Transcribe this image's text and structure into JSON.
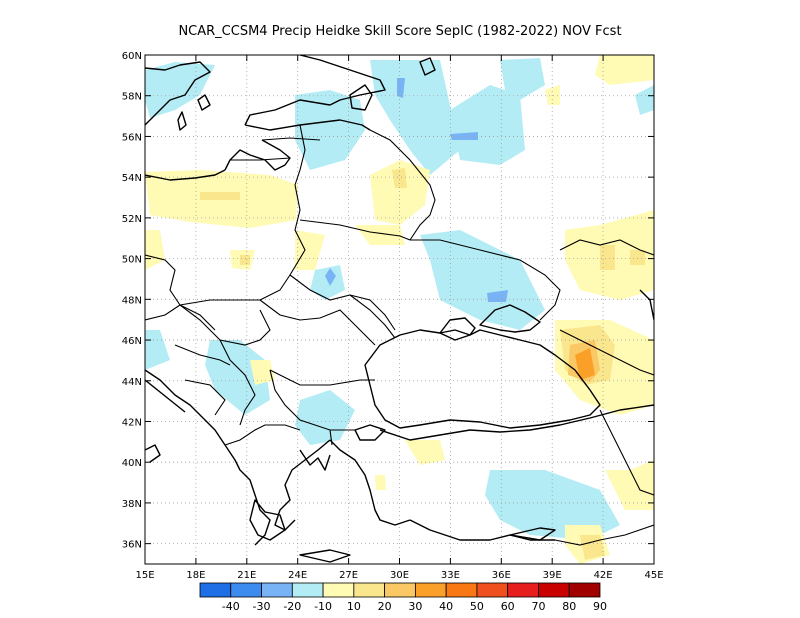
{
  "title": "NCAR_CCSM4 Precip Heidke Skill Score SepIC (1982-2022) NOV Fcst",
  "map": {
    "lon_range": [
      15,
      45
    ],
    "lat_range": [
      35,
      60
    ],
    "grid": true,
    "lon_ticks": [
      "15E",
      "18E",
      "21E",
      "24E",
      "27E",
      "30E",
      "33E",
      "36E",
      "39E",
      "42E",
      "45E"
    ],
    "lat_ticks": [
      "36N",
      "38N",
      "40N",
      "42N",
      "44N",
      "46N",
      "48N",
      "50N",
      "52N",
      "54N",
      "56N",
      "58N",
      "60N"
    ]
  },
  "colorbar": {
    "colors": [
      "#1e6ee6",
      "#3c8cf0",
      "#78b4f5",
      "#b4ecf5",
      "#fffab4",
      "#fae68c",
      "#fac864",
      "#faa028",
      "#fa7814",
      "#f0501e",
      "#e61e1e",
      "#c80000",
      "#a00000"
    ],
    "labels": [
      "-40",
      "-30",
      "-20",
      "-10",
      "10",
      "20",
      "30",
      "40",
      "50",
      "60",
      "70",
      "80",
      "90"
    ]
  }
}
